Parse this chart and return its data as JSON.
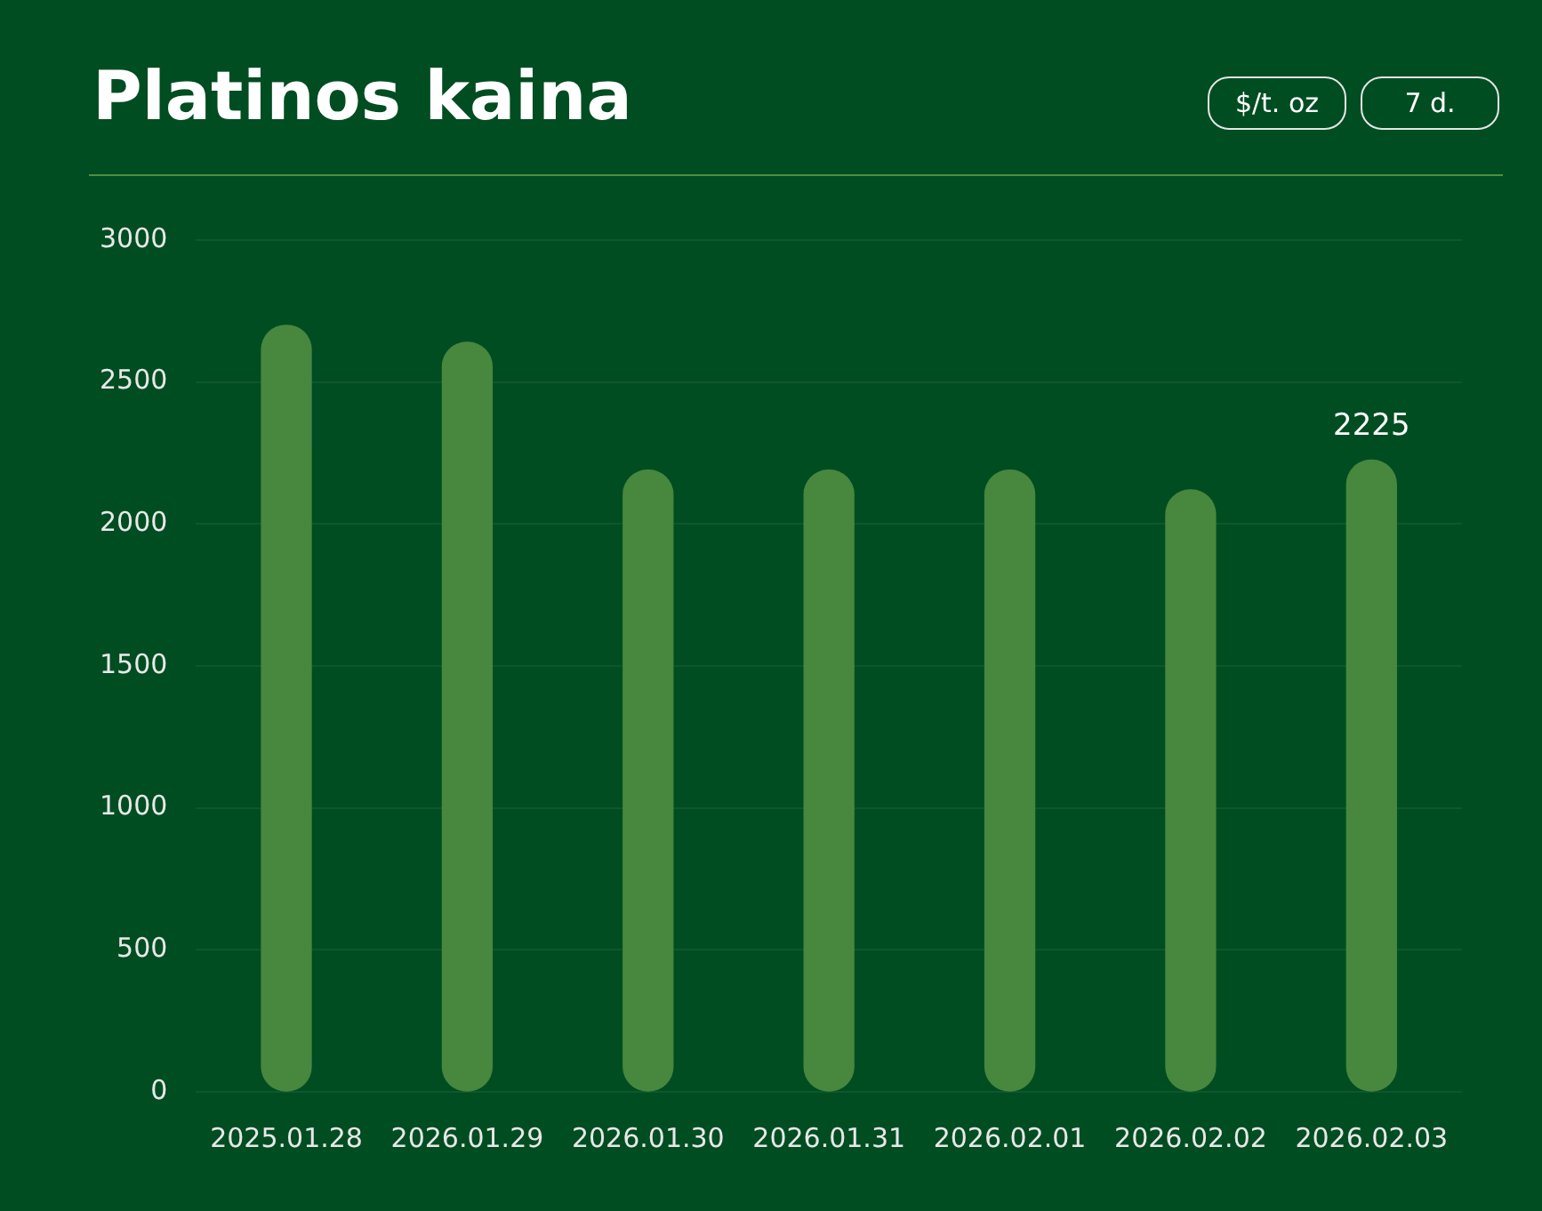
{
  "chart_data": {
    "type": "bar",
    "title": "Platinos kaina",
    "annotations": [
      "$/t. oz",
      "7 d."
    ],
    "categories": [
      "2025.01.28",
      "2026.01.29",
      "2026.01.30",
      "2026.01.31",
      "2026.02.01",
      "2026.02.02",
      "2026.02.03"
    ],
    "values": [
      2700,
      2640,
      2190,
      2190,
      2190,
      2120,
      2225
    ],
    "value_labels": [
      null,
      null,
      null,
      null,
      null,
      null,
      "2225"
    ],
    "color": "#47873e",
    "ylim": [
      0,
      3000
    ],
    "yticks": [
      0,
      500,
      1000,
      1500,
      2000,
      2500,
      3000
    ],
    "grid": "y",
    "legend": false
  }
}
